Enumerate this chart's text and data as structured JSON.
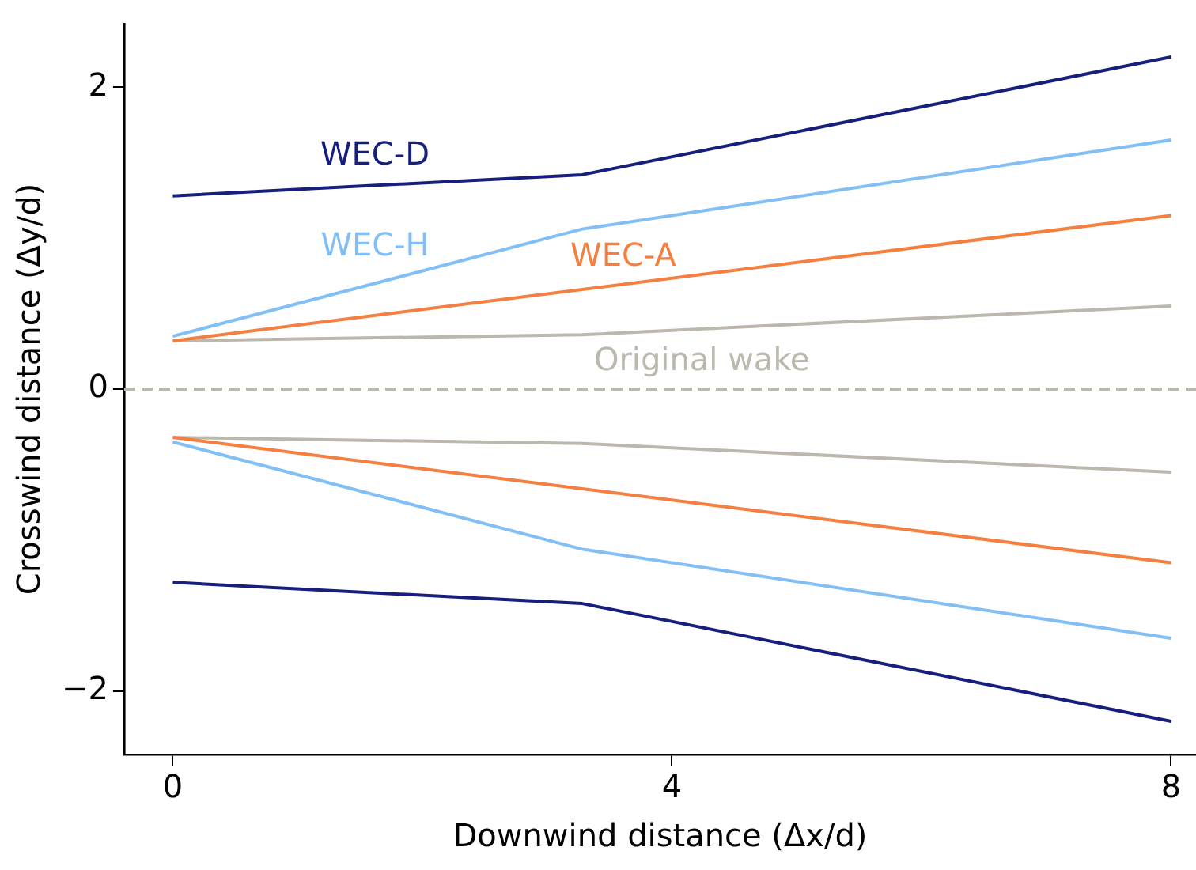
{
  "chart_data": {
    "type": "line",
    "xlabel": "Downwind distance (Δx/d)",
    "ylabel": "Crosswind distance (Δy/d)",
    "xlim": [
      -0.39,
      8.2
    ],
    "xticks": [
      0,
      4,
      8
    ],
    "ylim": [
      -2.42,
      2.42
    ],
    "yticks": [
      {
        "value": -2,
        "label": "−2"
      },
      0,
      2
    ],
    "grid": false,
    "legend": false,
    "marker": "none",
    "line_style": "solid",
    "ref_lines": [
      {
        "axis": "y",
        "value": 0,
        "color": "#bcb8ae",
        "line_style": "dashed"
      }
    ],
    "series": [
      {
        "name": "WEC-D",
        "color": "#161f7c",
        "x": [
          0,
          3.28,
          8
        ],
        "values": [
          1.28,
          1.42,
          2.2
        ]
      },
      {
        "color": "#161f7c",
        "x": [
          0,
          3.28,
          8
        ],
        "values": [
          -1.28,
          -1.42,
          -2.2
        ]
      },
      {
        "name": "WEC-H",
        "color": "#82bff5",
        "x": [
          0,
          3.28,
          8
        ],
        "values": [
          0.35,
          1.06,
          1.65
        ]
      },
      {
        "color": "#82bff5",
        "x": [
          0,
          3.28,
          8
        ],
        "values": [
          -0.35,
          -1.06,
          -1.65
        ]
      },
      {
        "name": "WEC-A",
        "color": "#f47f3f",
        "x": [
          0,
          8
        ],
        "values": [
          0.32,
          1.15
        ]
      },
      {
        "color": "#f47f3f",
        "x": [
          0,
          8
        ],
        "values": [
          -0.32,
          -1.15
        ]
      },
      {
        "name": "Original wake",
        "color": "#bcb8ae",
        "x": [
          0,
          3.28,
          8
        ],
        "values": [
          0.32,
          0.36,
          0.55
        ]
      },
      {
        "color": "#bcb8ae",
        "x": [
          0,
          3.28,
          8
        ],
        "values": [
          -0.32,
          -0.36,
          -0.55
        ]
      }
    ]
  }
}
